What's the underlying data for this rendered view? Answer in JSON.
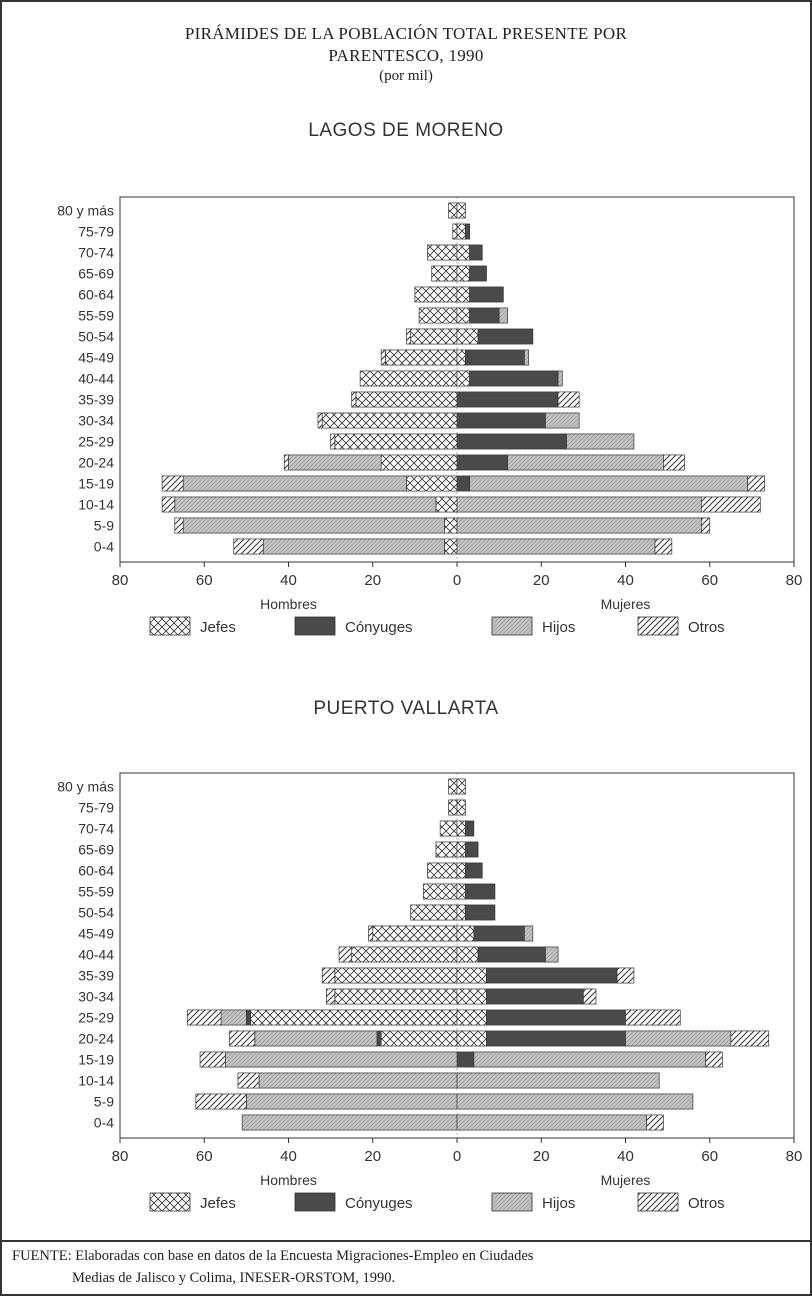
{
  "title": {
    "line1": "PIRÁMIDES DE LA POBLACIÓN TOTAL PRESENTE POR",
    "line2": "PARENTESCO, 1990",
    "line3": "(por mil)"
  },
  "colors": {
    "jefes": "#ffffff",
    "conyuges": "#4a4a4a",
    "hijos": "#c4c4c4",
    "otros": "#ffffff",
    "stroke": "#333333"
  },
  "legend_labels": [
    "Jefes",
    "Cónyuges",
    "Hijos",
    "Otros"
  ],
  "chart_data": [
    {
      "type": "bar",
      "title": "LAGOS DE MORENO",
      "categories": [
        "80 y más",
        "75-79",
        "70-74",
        "65-69",
        "60-64",
        "55-59",
        "50-54",
        "45-49",
        "40-44",
        "35-39",
        "30-34",
        "25-29",
        "20-24",
        "15-19",
        "10-14",
        "5-9",
        "0-4"
      ],
      "xlim": [
        -80,
        80
      ],
      "xticks": [
        -80,
        -60,
        -40,
        -20,
        0,
        20,
        40,
        60,
        80
      ],
      "xtick_labels": [
        "80",
        "60",
        "40",
        "20",
        "0",
        "20",
        "40",
        "60",
        "80"
      ],
      "xlabel_left": "Hombres",
      "xlabel_right": "Mujeres",
      "series": [
        {
          "name": "Jefes",
          "side": "male",
          "values": [
            2,
            1,
            7,
            6,
            10,
            9,
            11,
            17,
            23,
            24,
            32,
            29,
            18,
            12,
            5,
            3,
            3
          ]
        },
        {
          "name": "Cónyuges",
          "side": "male",
          "values": [
            0,
            0,
            0,
            0,
            0,
            0,
            0,
            0,
            0,
            0,
            0,
            0,
            0,
            0,
            0,
            0,
            0
          ]
        },
        {
          "name": "Hijos",
          "side": "male",
          "values": [
            0,
            0,
            0,
            0,
            0,
            0,
            0,
            0,
            0,
            0,
            0,
            0,
            22,
            53,
            62,
            62,
            43
          ]
        },
        {
          "name": "Otros",
          "side": "male",
          "values": [
            0,
            0,
            0,
            0,
            0,
            0,
            1,
            1,
            0,
            1,
            1,
            1,
            1,
            5,
            3,
            2,
            7
          ]
        },
        {
          "name": "Jefes",
          "side": "female",
          "values": [
            2,
            2,
            3,
            3,
            3,
            3,
            5,
            2,
            3,
            0,
            0,
            0,
            0,
            0,
            0,
            0,
            0
          ]
        },
        {
          "name": "Cónyuges",
          "side": "female",
          "values": [
            0,
            1,
            3,
            4,
            8,
            7,
            13,
            14,
            21,
            24,
            21,
            26,
            12,
            3,
            0,
            0,
            0
          ]
        },
        {
          "name": "Hijos",
          "side": "female",
          "values": [
            0,
            0,
            0,
            0,
            0,
            2,
            0,
            1,
            1,
            0,
            8,
            16,
            37,
            66,
            58,
            58,
            47
          ]
        },
        {
          "name": "Otros",
          "side": "female",
          "values": [
            0,
            0,
            0,
            0,
            0,
            0,
            0,
            0,
            0,
            5,
            0,
            0,
            5,
            4,
            14,
            2,
            4
          ]
        }
      ]
    },
    {
      "type": "bar",
      "title": "PUERTO VALLARTA",
      "categories": [
        "80 y más",
        "75-79",
        "70-74",
        "65-69",
        "60-64",
        "55-59",
        "50-54",
        "45-49",
        "40-44",
        "35-39",
        "30-34",
        "25-29",
        "20-24",
        "15-19",
        "10-14",
        "5-9",
        "0-4"
      ],
      "xlim": [
        -80,
        80
      ],
      "xticks": [
        -80,
        -60,
        -40,
        -20,
        0,
        20,
        40,
        60,
        80
      ],
      "xtick_labels": [
        "80",
        "60",
        "40",
        "20",
        "0",
        "20",
        "40",
        "60",
        "80"
      ],
      "xlabel_left": "Hombres",
      "xlabel_right": "Mujeres",
      "series": [
        {
          "name": "Jefes",
          "side": "male",
          "values": [
            2,
            2,
            4,
            5,
            7,
            8,
            11,
            20,
            25,
            29,
            29,
            49,
            18,
            0,
            0,
            0,
            0
          ]
        },
        {
          "name": "Cónyuges",
          "side": "male",
          "values": [
            0,
            0,
            0,
            0,
            0,
            0,
            0,
            0,
            0,
            0,
            0,
            1,
            1,
            0,
            0,
            0,
            0
          ]
        },
        {
          "name": "Hijos",
          "side": "male",
          "values": [
            0,
            0,
            0,
            0,
            0,
            0,
            0,
            0,
            0,
            0,
            0,
            6,
            29,
            55,
            47,
            50,
            51
          ]
        },
        {
          "name": "Otros",
          "side": "male",
          "values": [
            0,
            0,
            0,
            0,
            0,
            0,
            0,
            1,
            3,
            3,
            2,
            8,
            6,
            6,
            5,
            12,
            0
          ]
        },
        {
          "name": "Jefes",
          "side": "female",
          "values": [
            2,
            2,
            2,
            2,
            2,
            2,
            2,
            4,
            5,
            7,
            7,
            7,
            7,
            0,
            0,
            0,
            0
          ]
        },
        {
          "name": "Cónyuges",
          "side": "female",
          "values": [
            0,
            0,
            2,
            3,
            4,
            7,
            7,
            12,
            16,
            31,
            23,
            33,
            33,
            4,
            0,
            0,
            0
          ]
        },
        {
          "name": "Hijos",
          "side": "female",
          "values": [
            0,
            0,
            0,
            0,
            0,
            0,
            0,
            2,
            3,
            0,
            0,
            0,
            25,
            55,
            48,
            56,
            45
          ]
        },
        {
          "name": "Otros",
          "side": "female",
          "values": [
            0,
            0,
            0,
            0,
            0,
            0,
            0,
            0,
            0,
            4,
            3,
            13,
            9,
            4,
            0,
            0,
            4
          ]
        }
      ]
    }
  ],
  "source": {
    "line1": "FUENTE: Elaboradas con base en datos de la Encuesta Migraciones-Empleo en Ciudades",
    "line2": "Medias de Jalisco y Colima, INESER-ORSTOM, 1990."
  }
}
